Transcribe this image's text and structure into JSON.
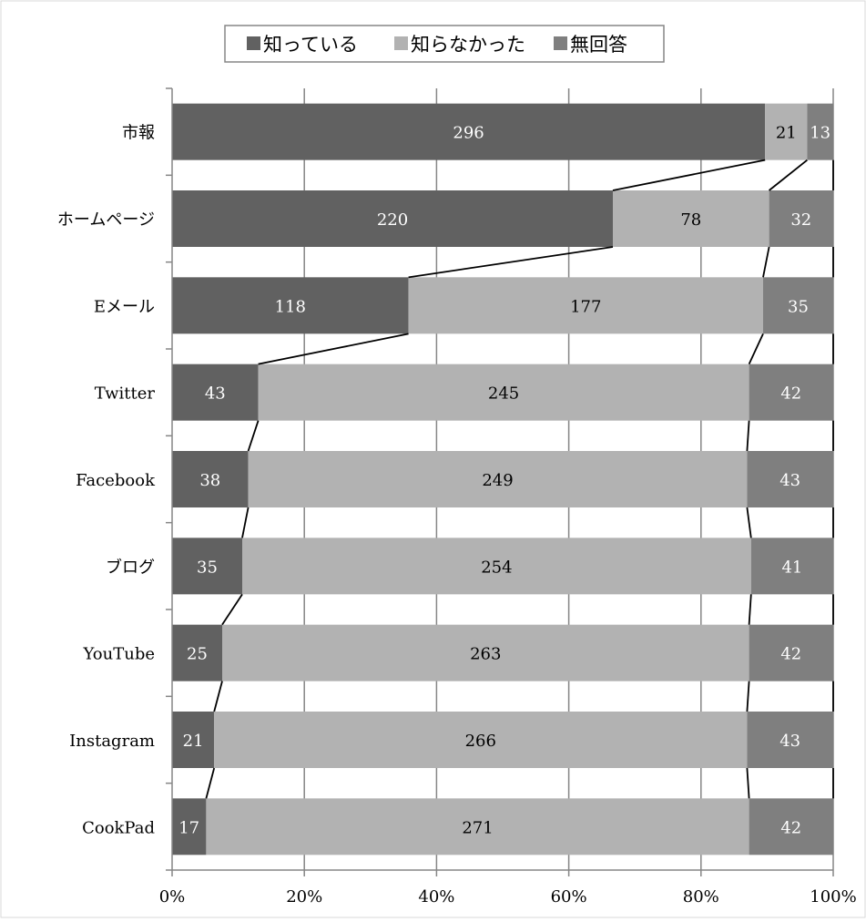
{
  "chart_data": {
    "type": "bar",
    "orientation": "horizontal",
    "stacked": "percent",
    "categories": [
      "市報",
      "ホームページ",
      "Eメール",
      "Twitter",
      "Facebook",
      "ブログ",
      "YouTube",
      "Instagram",
      "CookPad"
    ],
    "series": [
      {
        "name": "知っている",
        "color": "#616161",
        "label_color": "#ffffff",
        "values": [
          296,
          220,
          118,
          43,
          38,
          35,
          25,
          21,
          17
        ]
      },
      {
        "name": "知らなかった",
        "color": "#b2b2b2",
        "label_color": "#000000",
        "values": [
          21,
          78,
          177,
          245,
          249,
          254,
          263,
          266,
          271
        ]
      },
      {
        "name": "無回答",
        "color": "#7f7f7f",
        "label_color": "#ffffff",
        "values": [
          13,
          32,
          35,
          42,
          43,
          41,
          42,
          43,
          42
        ]
      }
    ],
    "x_ticks": [
      "0%",
      "20%",
      "40%",
      "60%",
      "80%",
      "100%"
    ],
    "xlim": [
      0,
      100
    ],
    "grid": true,
    "series_lines": true,
    "legend_position": "top"
  }
}
